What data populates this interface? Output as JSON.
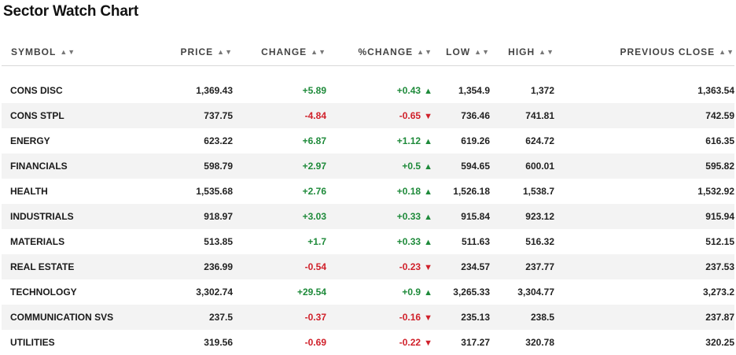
{
  "title": "Sector Watch Chart",
  "colors": {
    "up": "#1e8a3a",
    "down": "#d0202a",
    "row_alt": "#f3f3f3"
  },
  "columns": [
    "SYMBOL",
    "PRICE",
    "CHANGE",
    "%CHANGE",
    "LOW",
    "HIGH",
    "PREVIOUS CLOSE"
  ],
  "sort_icon": "sort-arrows-icon",
  "rows": [
    {
      "symbol": "CONS DISC",
      "price": "1,369.43",
      "change": "+5.89",
      "pct_change": "+0.43",
      "low": "1,354.9",
      "high": "1,372",
      "prev_close": "1,363.54",
      "direction": "up"
    },
    {
      "symbol": "CONS STPL",
      "price": "737.75",
      "change": "-4.84",
      "pct_change": "-0.65",
      "low": "736.46",
      "high": "741.81",
      "prev_close": "742.59",
      "direction": "down"
    },
    {
      "symbol": "ENERGY",
      "price": "623.22",
      "change": "+6.87",
      "pct_change": "+1.12",
      "low": "619.26",
      "high": "624.72",
      "prev_close": "616.35",
      "direction": "up"
    },
    {
      "symbol": "FINANCIALS",
      "price": "598.79",
      "change": "+2.97",
      "pct_change": "+0.5",
      "low": "594.65",
      "high": "600.01",
      "prev_close": "595.82",
      "direction": "up"
    },
    {
      "symbol": "HEALTH",
      "price": "1,535.68",
      "change": "+2.76",
      "pct_change": "+0.18",
      "low": "1,526.18",
      "high": "1,538.7",
      "prev_close": "1,532.92",
      "direction": "up"
    },
    {
      "symbol": "INDUSTRIALS",
      "price": "918.97",
      "change": "+3.03",
      "pct_change": "+0.33",
      "low": "915.84",
      "high": "923.12",
      "prev_close": "915.94",
      "direction": "up"
    },
    {
      "symbol": "MATERIALS",
      "price": "513.85",
      "change": "+1.7",
      "pct_change": "+0.33",
      "low": "511.63",
      "high": "516.32",
      "prev_close": "512.15",
      "direction": "up"
    },
    {
      "symbol": "REAL ESTATE",
      "price": "236.99",
      "change": "-0.54",
      "pct_change": "-0.23",
      "low": "234.57",
      "high": "237.77",
      "prev_close": "237.53",
      "direction": "down"
    },
    {
      "symbol": "TECHNOLOGY",
      "price": "3,302.74",
      "change": "+29.54",
      "pct_change": "+0.9",
      "low": "3,265.33",
      "high": "3,304.77",
      "prev_close": "3,273.2",
      "direction": "up"
    },
    {
      "symbol": "COMMUNICATION SVS",
      "price": "237.5",
      "change": "-0.37",
      "pct_change": "-0.16",
      "low": "235.13",
      "high": "238.5",
      "prev_close": "237.87",
      "direction": "down"
    },
    {
      "symbol": "UTILITIES",
      "price": "319.56",
      "change": "-0.69",
      "pct_change": "-0.22",
      "low": "317.27",
      "high": "320.78",
      "prev_close": "320.25",
      "direction": "down"
    }
  ]
}
